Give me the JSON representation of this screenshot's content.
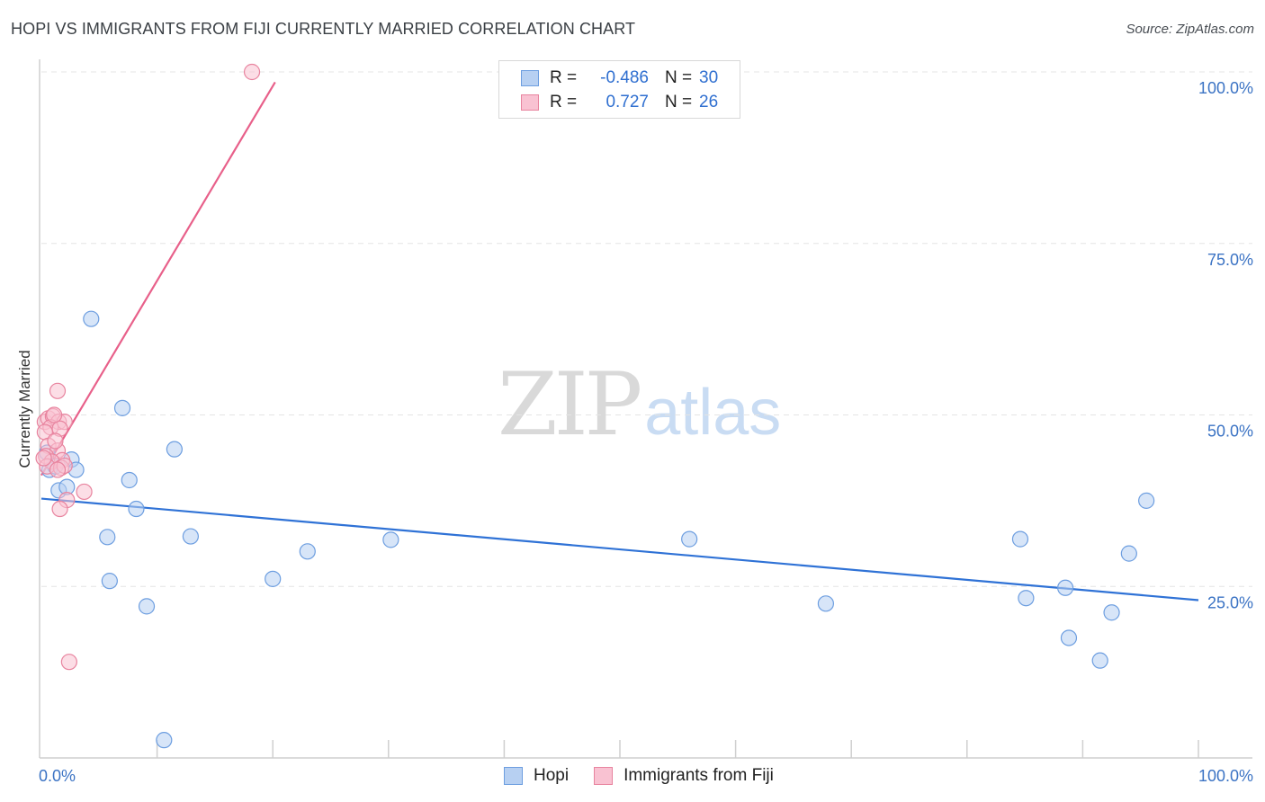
{
  "header": {
    "title": "HOPI VS IMMIGRANTS FROM FIJI CURRENTLY MARRIED CORRELATION CHART",
    "source": "Source: ZipAtlas.com"
  },
  "watermark": {
    "zip": "ZIP",
    "atlas": "atlas"
  },
  "legend": {
    "r_label": "R =",
    "n_label": "N =",
    "hopi": {
      "r": "-0.486",
      "n": "30"
    },
    "fiji": {
      "r": "0.727",
      "n": "26"
    }
  },
  "bottom_legend": {
    "hopi": "Hopi",
    "fiji": "Immigrants from Fiji"
  },
  "colors": {
    "hopi_fill": "#b7d0f2",
    "hopi_stroke": "#6d9ee0",
    "hopi_line": "#2f72d6",
    "fiji_fill": "#f9c2d2",
    "fiji_stroke": "#e8849f",
    "fiji_line": "#e8608a",
    "tick": "#3b73c4",
    "grid": "#e4e4e4"
  },
  "chart_data": {
    "type": "scatter",
    "title": "HOPI VS IMMIGRANTS FROM FIJI CURRENTLY MARRIED CORRELATION CHART",
    "xlabel": "",
    "ylabel": "Currently Married",
    "xlim": [
      0,
      100
    ],
    "ylim": [
      0,
      100
    ],
    "x_tick_labels": [
      "0.0%",
      "100.0%"
    ],
    "y_ticks": [
      25,
      50,
      75,
      100
    ],
    "y_tick_labels": [
      "25.0%",
      "50.0%",
      "75.0%",
      "100.0%"
    ],
    "grid": true,
    "series": [
      {
        "name": "Hopi",
        "r": -0.486,
        "n": 30,
        "points": [
          [
            4.3,
            64
          ],
          [
            7.0,
            51
          ],
          [
            11.5,
            45
          ],
          [
            2.6,
            43.5
          ],
          [
            3.0,
            42
          ],
          [
            0.7,
            42
          ],
          [
            1.2,
            42.5
          ],
          [
            1.5,
            39
          ],
          [
            2.2,
            39.5
          ],
          [
            7.6,
            40.5
          ],
          [
            8.2,
            36.3
          ],
          [
            5.7,
            32.2
          ],
          [
            12.9,
            32.3
          ],
          [
            23.0,
            30.1
          ],
          [
            30.2,
            31.8
          ],
          [
            20.0,
            26.1
          ],
          [
            5.9,
            25.8
          ],
          [
            9.1,
            22.1
          ],
          [
            10.6,
            2.6
          ],
          [
            56.0,
            31.9
          ],
          [
            67.8,
            22.5
          ],
          [
            84.6,
            31.9
          ],
          [
            95.5,
            37.5
          ],
          [
            94.0,
            29.8
          ],
          [
            85.1,
            23.3
          ],
          [
            88.5,
            24.8
          ],
          [
            92.5,
            21.2
          ],
          [
            88.8,
            17.5
          ],
          [
            91.5,
            14.2
          ],
          [
            0.5,
            44.5
          ]
        ],
        "trend": {
          "x": [
            0,
            100
          ],
          "y": [
            37.8,
            23.0
          ]
        }
      },
      {
        "name": "Immigrants from Fiji",
        "r": 0.727,
        "n": 26,
        "points": [
          [
            18.2,
            100
          ],
          [
            1.4,
            53.5
          ],
          [
            0.3,
            49
          ],
          [
            0.6,
            49.5
          ],
          [
            1.0,
            49.8
          ],
          [
            1.5,
            49
          ],
          [
            2.0,
            49
          ],
          [
            0.8,
            48.2
          ],
          [
            1.6,
            48
          ],
          [
            0.3,
            47.5
          ],
          [
            0.6,
            45.5
          ],
          [
            1.4,
            44.8
          ],
          [
            0.4,
            44
          ],
          [
            1.8,
            43.4
          ],
          [
            0.9,
            43.2
          ],
          [
            0.5,
            42.5
          ],
          [
            1.7,
            42.3
          ],
          [
            2.0,
            42.6
          ],
          [
            1.4,
            42
          ],
          [
            3.7,
            38.8
          ],
          [
            2.2,
            37.6
          ],
          [
            1.6,
            36.3
          ],
          [
            2.4,
            14
          ],
          [
            0.2,
            43.7
          ],
          [
            1.2,
            46.2
          ],
          [
            1.1,
            50
          ]
        ],
        "trend": {
          "x": [
            0,
            20.2
          ],
          "y": [
            41.2,
            98.5
          ]
        }
      }
    ]
  }
}
